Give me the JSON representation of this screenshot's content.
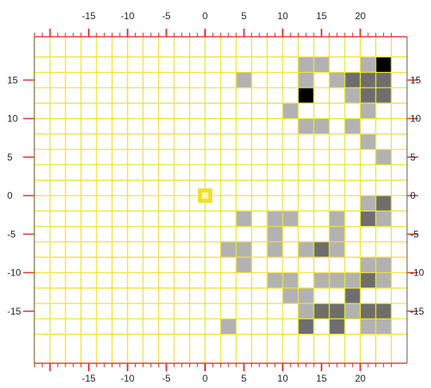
{
  "chart_data": {
    "type": "heatmap",
    "title": "",
    "xlabel": "",
    "ylabel": "",
    "xlim": [
      -24,
      24
    ],
    "ylim": [
      -17,
      17
    ],
    "cell_size": 2,
    "x_ticks": [
      -15,
      -10,
      -5,
      0,
      5,
      10,
      15,
      20
    ],
    "y_ticks": [
      15,
      10,
      5,
      0,
      -5,
      -10,
      -15
    ],
    "x_tick_labels": [
      "-15",
      "-10",
      "-5",
      "0",
      "5",
      "10",
      "15",
      "20"
    ],
    "y_tick_labels": [
      "15",
      "10",
      "5",
      "0",
      "-5",
      "-10",
      "-15"
    ],
    "grid": true,
    "colors": {
      "background": "#ffffff",
      "grid": "#ede23a",
      "axis": "#e03a3a",
      "level1": "#b2b2b2",
      "level2": "#6e6e6e",
      "level3": "#000000",
      "marker": "#f2df2a",
      "marker_center": "#fff7b0"
    },
    "marker": {
      "x": 0,
      "y": 0
    },
    "cells": [
      {
        "x": 12,
        "y": 16,
        "level": 1
      },
      {
        "x": 14,
        "y": 16,
        "level": 1
      },
      {
        "x": 20,
        "y": 16,
        "level": 1
      },
      {
        "x": 22,
        "y": 16,
        "level": 3
      },
      {
        "x": 4,
        "y": 14,
        "level": 1
      },
      {
        "x": 12,
        "y": 14,
        "level": 1
      },
      {
        "x": 16,
        "y": 14,
        "level": 1
      },
      {
        "x": 18,
        "y": 14,
        "level": 2
      },
      {
        "x": 20,
        "y": 14,
        "level": 2
      },
      {
        "x": 22,
        "y": 14,
        "level": 2
      },
      {
        "x": 12,
        "y": 12,
        "level": 3
      },
      {
        "x": 18,
        "y": 12,
        "level": 1
      },
      {
        "x": 20,
        "y": 12,
        "level": 2
      },
      {
        "x": 22,
        "y": 12,
        "level": 2
      },
      {
        "x": 10,
        "y": 10,
        "level": 1
      },
      {
        "x": 20,
        "y": 10,
        "level": 1
      },
      {
        "x": 12,
        "y": 8,
        "level": 1
      },
      {
        "x": 14,
        "y": 8,
        "level": 1
      },
      {
        "x": 18,
        "y": 8,
        "level": 1
      },
      {
        "x": 20,
        "y": 6,
        "level": 1
      },
      {
        "x": 22,
        "y": 4,
        "level": 1
      },
      {
        "x": 22,
        "y": -2,
        "level": 2
      },
      {
        "x": 20,
        "y": -2,
        "level": 1
      },
      {
        "x": 4,
        "y": -4,
        "level": 1
      },
      {
        "x": 8,
        "y": -4,
        "level": 1
      },
      {
        "x": 10,
        "y": -4,
        "level": 1
      },
      {
        "x": 16,
        "y": -4,
        "level": 1
      },
      {
        "x": 20,
        "y": -4,
        "level": 2
      },
      {
        "x": 22,
        "y": -4,
        "level": 1
      },
      {
        "x": 8,
        "y": -6,
        "level": 1
      },
      {
        "x": 16,
        "y": -6,
        "level": 1
      },
      {
        "x": 2,
        "y": -8,
        "level": 1
      },
      {
        "x": 4,
        "y": -8,
        "level": 1
      },
      {
        "x": 8,
        "y": -8,
        "level": 1
      },
      {
        "x": 12,
        "y": -8,
        "level": 1
      },
      {
        "x": 14,
        "y": -8,
        "level": 2
      },
      {
        "x": 16,
        "y": -8,
        "level": 1
      },
      {
        "x": 4,
        "y": -10,
        "level": 1
      },
      {
        "x": 20,
        "y": -10,
        "level": 1
      },
      {
        "x": 22,
        "y": -10,
        "level": 1
      },
      {
        "x": 8,
        "y": -12,
        "level": 1
      },
      {
        "x": 10,
        "y": -12,
        "level": 1
      },
      {
        "x": 14,
        "y": -12,
        "level": 1
      },
      {
        "x": 16,
        "y": -12,
        "level": 1
      },
      {
        "x": 18,
        "y": -12,
        "level": 1
      },
      {
        "x": 22,
        "y": -12,
        "level": 1
      },
      {
        "x": 20,
        "y": -12,
        "level": 2
      },
      {
        "x": 10,
        "y": -14,
        "level": 1
      },
      {
        "x": 12,
        "y": -14,
        "level": 1
      },
      {
        "x": 18,
        "y": -14,
        "level": 2
      },
      {
        "x": 12,
        "y": -16,
        "level": 1
      },
      {
        "x": 14,
        "y": -16,
        "level": 2
      },
      {
        "x": 16,
        "y": -16,
        "level": 2
      },
      {
        "x": 18,
        "y": -16,
        "level": 1
      },
      {
        "x": 20,
        "y": -16,
        "level": 2
      },
      {
        "x": 22,
        "y": -16,
        "level": 2
      },
      {
        "x": 2,
        "y": -18,
        "level": 1
      },
      {
        "x": 12,
        "y": -18,
        "level": 2
      },
      {
        "x": 16,
        "y": -18,
        "level": 2
      },
      {
        "x": 20,
        "y": -18,
        "level": 1
      },
      {
        "x": 22,
        "y": -18,
        "level": 1
      }
    ]
  }
}
